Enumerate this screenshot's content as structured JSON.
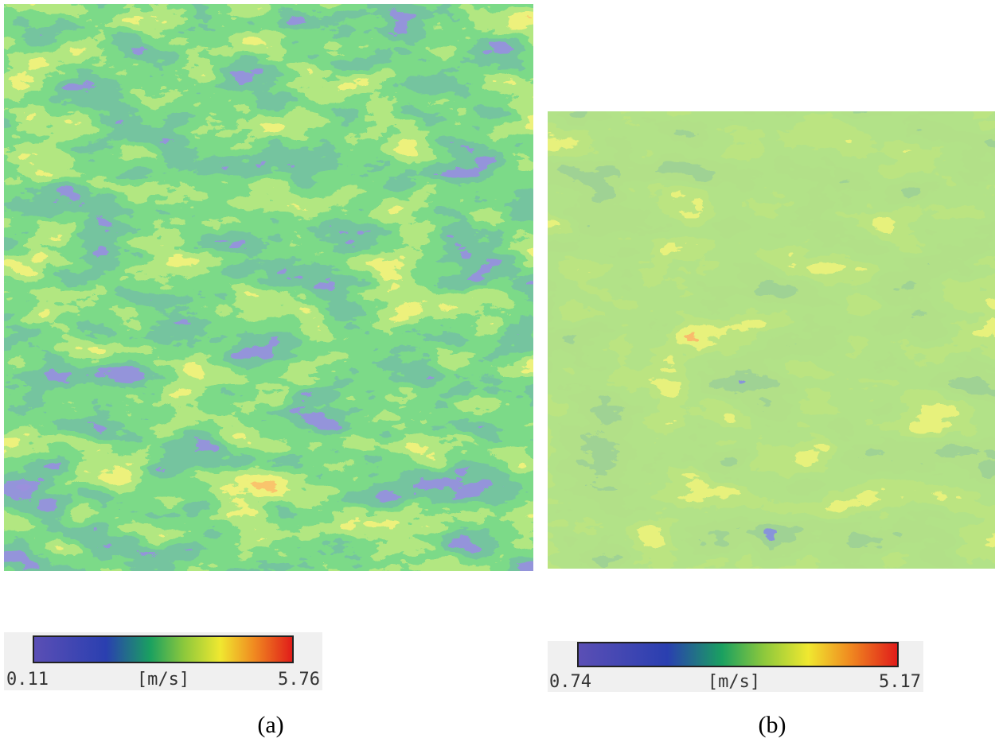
{
  "panels": [
    {
      "colorbar": {
        "min": 0.11,
        "unit": "[m/s]",
        "max": 5.76
      },
      "caption": "(a)"
    },
    {
      "colorbar": {
        "min": 0.74,
        "unit": "[m/s]",
        "max": 5.17
      },
      "caption": "(b)"
    }
  ]
}
